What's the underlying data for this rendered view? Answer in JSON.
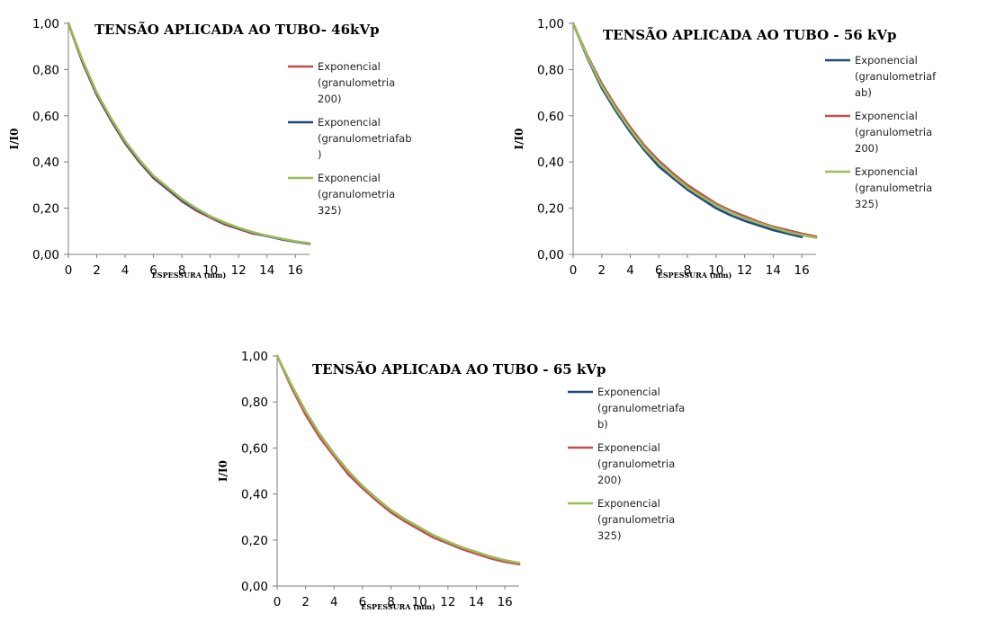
{
  "chart_data": [
    {
      "type": "line",
      "title": "TENSÃO APLICADA  AO TUBO- 46kVp",
      "xlabel": "ESPESSURA (mm)",
      "ylabel": "I/I0",
      "xlim": [
        0,
        17
      ],
      "ylim": [
        0,
        1
      ],
      "xticks": [
        "0",
        "2",
        "4",
        "6",
        "8",
        "10",
        "12",
        "14",
        "16"
      ],
      "yticks": [
        "0,00",
        "0,20",
        "0,40",
        "0,60",
        "0,80",
        "1,00"
      ],
      "grid": false,
      "legend_position": "right",
      "series": [
        {
          "name": "Exponencial (granulometria 200)",
          "legend_lines": [
            "Exponencial",
            "(granulometria",
            "200)"
          ],
          "color": "#c0504d",
          "x": [
            0,
            1,
            2,
            3,
            4,
            5,
            6,
            7,
            8,
            9,
            10,
            11,
            12,
            13,
            14,
            15,
            16,
            17
          ],
          "y": [
            1.0,
            0.83,
            0.69,
            0.58,
            0.48,
            0.4,
            0.33,
            0.28,
            0.23,
            0.19,
            0.16,
            0.13,
            0.11,
            0.09,
            0.08,
            0.065,
            0.055,
            0.045
          ]
        },
        {
          "name": "Exponencial (granulometriafab)",
          "legend_lines": [
            "Exponencial",
            "(granulometriafab",
            ")"
          ],
          "color": "#1f497d",
          "x": [
            0,
            1,
            2,
            3,
            4,
            5,
            6,
            7,
            8,
            9,
            10,
            11,
            12,
            13,
            14,
            15,
            16,
            17
          ],
          "y": [
            1.0,
            0.835,
            0.695,
            0.585,
            0.485,
            0.405,
            0.335,
            0.285,
            0.235,
            0.195,
            0.163,
            0.135,
            0.113,
            0.094,
            0.079,
            0.066,
            0.055,
            0.046
          ]
        },
        {
          "name": "Exponencial (granulometria 325)",
          "legend_lines": [
            "Exponencial",
            "(granulometria",
            "325)"
          ],
          "color": "#9bbb59",
          "x": [
            0,
            1,
            2,
            3,
            4,
            5,
            6,
            7,
            8,
            9,
            10,
            11,
            12,
            13,
            14,
            15,
            16,
            17
          ],
          "y": [
            1.0,
            0.84,
            0.7,
            0.59,
            0.49,
            0.41,
            0.34,
            0.29,
            0.24,
            0.2,
            0.165,
            0.138,
            0.115,
            0.096,
            0.081,
            0.068,
            0.057,
            0.048
          ]
        }
      ]
    },
    {
      "type": "line",
      "title": "TENSÃO APLICADA AO TUBO  - 56 kVp",
      "xlabel": "ESPESSURA (mm)",
      "ylabel": "I/I0",
      "xlim": [
        0,
        17
      ],
      "ylim": [
        0,
        1
      ],
      "xticks": [
        "0",
        "2",
        "4",
        "6",
        "8",
        "10",
        "12",
        "14",
        "16"
      ],
      "yticks": [
        "0,00",
        "0,20",
        "0,40",
        "0,60",
        "0,80",
        "1,00"
      ],
      "grid": false,
      "legend_position": "right",
      "series": [
        {
          "name": "Exponencial (granulometriafab)",
          "legend_lines": [
            "Exponencial",
            "(granulometriaf",
            "ab)"
          ],
          "color": "#1f497d",
          "x": [
            0,
            1,
            2,
            3,
            4,
            5,
            6,
            7,
            8,
            9,
            10,
            11,
            12,
            13,
            14,
            15,
            16
          ],
          "y": [
            1.0,
            0.85,
            0.72,
            0.62,
            0.53,
            0.45,
            0.38,
            0.33,
            0.28,
            0.24,
            0.2,
            0.17,
            0.145,
            0.125,
            0.105,
            0.09,
            0.075
          ]
        },
        {
          "name": "Exponencial (granulometria 200)",
          "legend_lines": [
            "Exponencial",
            "(granulometria",
            "200)"
          ],
          "color": "#c0504d",
          "x": [
            0,
            1,
            2,
            3,
            4,
            5,
            6,
            7,
            8,
            9,
            10,
            11,
            12,
            13,
            14,
            15,
            16,
            17
          ],
          "y": [
            1.0,
            0.86,
            0.74,
            0.64,
            0.55,
            0.47,
            0.405,
            0.35,
            0.3,
            0.26,
            0.22,
            0.19,
            0.165,
            0.14,
            0.12,
            0.105,
            0.09,
            0.077
          ]
        },
        {
          "name": "Exponencial (granulometria 325)",
          "legend_lines": [
            "Exponencial",
            "(granulometria",
            "325)"
          ],
          "color": "#9bbb59",
          "x": [
            0,
            1,
            2,
            3,
            4,
            5,
            6,
            7,
            8,
            9,
            10,
            11,
            12,
            13,
            14,
            15,
            16,
            17
          ],
          "y": [
            1.0,
            0.855,
            0.73,
            0.63,
            0.54,
            0.46,
            0.395,
            0.34,
            0.29,
            0.25,
            0.213,
            0.183,
            0.157,
            0.135,
            0.115,
            0.098,
            0.084,
            0.072
          ]
        }
      ]
    },
    {
      "type": "line",
      "title": "TENSÃO APLICADA AO TUBO  - 65 kVp",
      "xlabel": "ESPESSURA (mm)",
      "ylabel": "I/I0",
      "xlim": [
        0,
        17
      ],
      "ylim": [
        0,
        1
      ],
      "xticks": [
        "0",
        "2",
        "4",
        "6",
        "8",
        "10",
        "12",
        "14",
        "16"
      ],
      "yticks": [
        "0,00",
        "0,20",
        "0,40",
        "0,60",
        "0,80",
        "1,00"
      ],
      "grid": false,
      "legend_position": "right",
      "series": [
        {
          "name": "Exponencial (granulometriafab)",
          "legend_lines": [
            "Exponencial",
            "(granulometriafa",
            "b)"
          ],
          "color": "#1f497d",
          "x": [
            0,
            1,
            2,
            3,
            4,
            5,
            6,
            7,
            8,
            9,
            10,
            11,
            12,
            13,
            14,
            15,
            16,
            17
          ],
          "y": [
            1.0,
            0.87,
            0.75,
            0.65,
            0.57,
            0.49,
            0.43,
            0.375,
            0.325,
            0.285,
            0.25,
            0.215,
            0.19,
            0.165,
            0.145,
            0.125,
            0.11,
            0.095
          ]
        },
        {
          "name": "Exponencial (granulometria 200)",
          "legend_lines": [
            "Exponencial",
            "(granulometria",
            "200)"
          ],
          "color": "#c0504d",
          "x": [
            0,
            1,
            2,
            3,
            4,
            5,
            6,
            7,
            8,
            9,
            10,
            11,
            12,
            13,
            14,
            15,
            16,
            17
          ],
          "y": [
            1.0,
            0.865,
            0.745,
            0.645,
            0.565,
            0.485,
            0.425,
            0.37,
            0.32,
            0.28,
            0.245,
            0.21,
            0.185,
            0.16,
            0.14,
            0.12,
            0.105,
            0.095
          ]
        },
        {
          "name": "Exponencial (granulometria 325)",
          "legend_lines": [
            "Exponencial",
            "(granulometria",
            "325)"
          ],
          "color": "#9bbb59",
          "x": [
            0,
            1,
            2,
            3,
            4,
            5,
            6,
            7,
            8,
            9,
            10,
            11,
            12,
            13,
            14,
            15,
            16,
            17
          ],
          "y": [
            1.0,
            0.875,
            0.76,
            0.66,
            0.575,
            0.5,
            0.435,
            0.38,
            0.33,
            0.29,
            0.255,
            0.22,
            0.193,
            0.168,
            0.148,
            0.128,
            0.112,
            0.1
          ]
        }
      ]
    }
  ]
}
